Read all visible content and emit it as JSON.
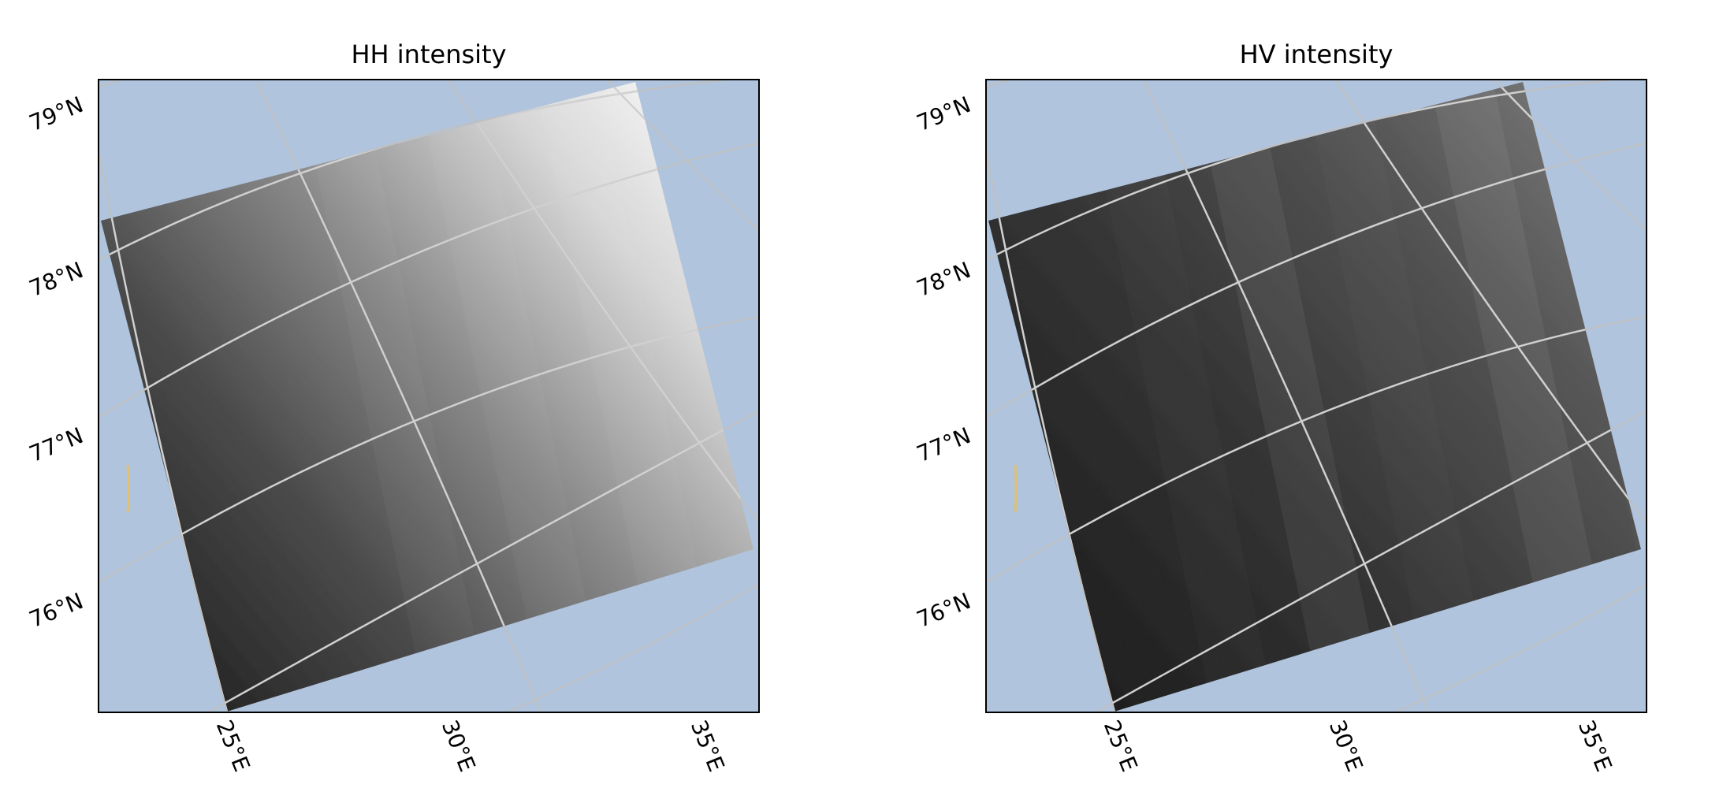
{
  "colors": {
    "ocean": "#b0c4de",
    "graticule": "#c0c0c0",
    "graticule_inner": "#c8c8c8",
    "coast_mark": "#e0c070",
    "frame": "#000000"
  },
  "panels": [
    {
      "title": "HH intensity",
      "image_tone": "bright-gradient"
    },
    {
      "title": "HV intensity",
      "image_tone": "dark-striped"
    }
  ],
  "axes": {
    "lat_labels": [
      "79°N",
      "78°N",
      "77°N",
      "76°N"
    ],
    "lon_labels": [
      "25°E",
      "30°E",
      "35°E"
    ]
  }
}
